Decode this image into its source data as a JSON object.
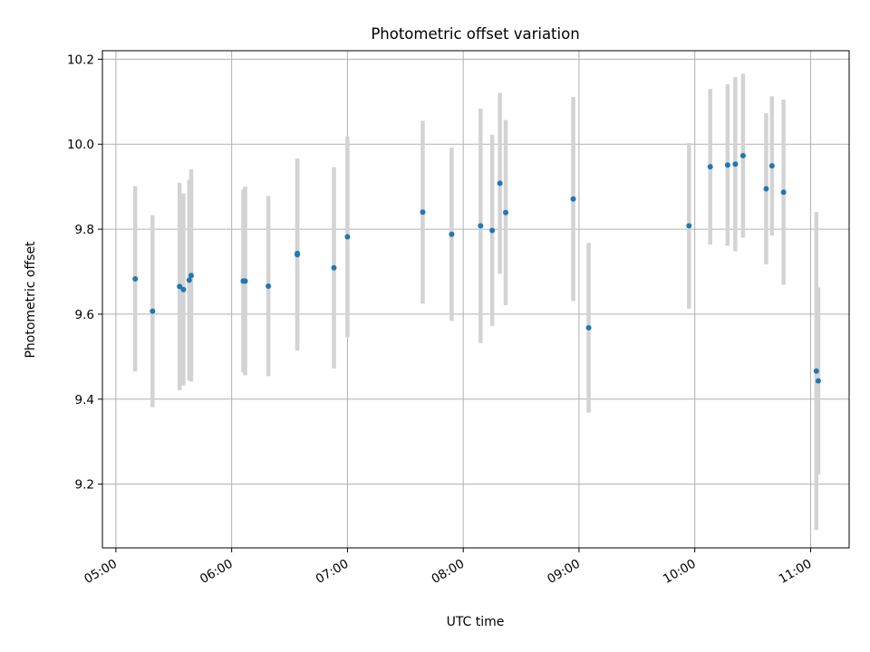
{
  "chart_data": {
    "type": "scatter",
    "title": "Photometric offset variation",
    "xlabel": "UTC time",
    "ylabel": "Photometric offset",
    "xlim": [
      "04:53",
      "11:20"
    ],
    "ylim": [
      9.05,
      10.22
    ],
    "grid": true,
    "x_ticks": [
      "05:00",
      "06:00",
      "07:00",
      "08:00",
      "09:00",
      "10:00",
      "11:00"
    ],
    "y_ticks": [
      9.2,
      9.4,
      9.6,
      9.8,
      10.0,
      10.2
    ],
    "colors": {
      "marker": "#1f77b4",
      "errorbar": "#d3d3d3",
      "grid": "#b0b0b0"
    },
    "series": [
      {
        "marker": "point",
        "points": [
          {
            "x": "05:10",
            "y": 9.683,
            "err": 0.218
          },
          {
            "x": "05:19",
            "y": 9.607,
            "err": 0.226
          },
          {
            "x": "05:33",
            "y": 9.665,
            "err": 0.244
          },
          {
            "x": "05:35",
            "y": 9.658,
            "err": 0.226
          },
          {
            "x": "05:38",
            "y": 9.68,
            "err": 0.236
          },
          {
            "x": "05:39",
            "y": 9.691,
            "err": 0.25
          },
          {
            "x": "06:06",
            "y": 9.678,
            "err": 0.215
          },
          {
            "x": "06:07",
            "y": 9.678,
            "err": 0.222
          },
          {
            "x": "06:19",
            "y": 9.666,
            "err": 0.212
          },
          {
            "x": "06:34",
            "y": 9.74,
            "err": 0.226
          },
          {
            "x": "06:34",
            "y": 9.743,
            "err": 0.222
          },
          {
            "x": "06:53",
            "y": 9.709,
            "err": 0.237
          },
          {
            "x": "07:00",
            "y": 9.782,
            "err": 0.236
          },
          {
            "x": "07:39",
            "y": 9.84,
            "err": 0.215
          },
          {
            "x": "07:54",
            "y": 9.788,
            "err": 0.204
          },
          {
            "x": "08:09",
            "y": 9.808,
            "err": 0.276
          },
          {
            "x": "08:15",
            "y": 9.797,
            "err": 0.225
          },
          {
            "x": "08:19",
            "y": 9.908,
            "err": 0.213
          },
          {
            "x": "08:22",
            "y": 9.839,
            "err": 0.218
          },
          {
            "x": "08:57",
            "y": 9.871,
            "err": 0.24
          },
          {
            "x": "09:05",
            "y": 9.568,
            "err": 0.2
          },
          {
            "x": "09:57",
            "y": 9.808,
            "err": 0.195
          },
          {
            "x": "10:08",
            "y": 9.947,
            "err": 0.183
          },
          {
            "x": "10:17",
            "y": 9.951,
            "err": 0.19
          },
          {
            "x": "10:21",
            "y": 9.953,
            "err": 0.205
          },
          {
            "x": "10:25",
            "y": 9.973,
            "err": 0.193
          },
          {
            "x": "10:37",
            "y": 9.895,
            "err": 0.178
          },
          {
            "x": "10:40",
            "y": 9.949,
            "err": 0.164
          },
          {
            "x": "10:46",
            "y": 9.887,
            "err": 0.218
          },
          {
            "x": "11:03",
            "y": 9.466,
            "err": 0.374
          },
          {
            "x": "11:04",
            "y": 9.443,
            "err": 0.22
          }
        ]
      }
    ]
  }
}
